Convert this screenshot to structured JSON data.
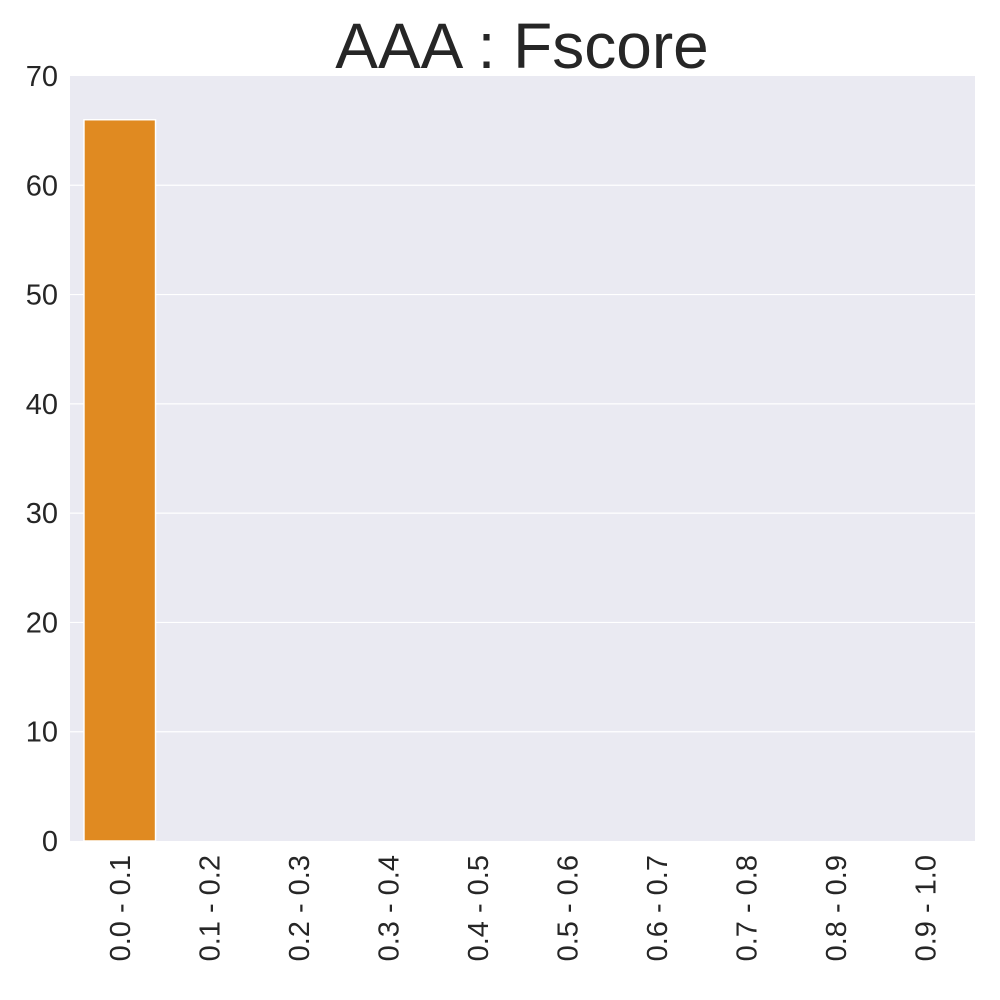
{
  "chart_data": {
    "type": "bar",
    "title": "AAA : Fscore",
    "xlabel": "",
    "ylabel": "",
    "categories": [
      "0.0 - 0.1",
      "0.1 - 0.2",
      "0.2 - 0.3",
      "0.3 - 0.4",
      "0.4 - 0.5",
      "0.5 - 0.6",
      "0.6 - 0.7",
      "0.7 - 0.8",
      "0.8 - 0.9",
      "0.9 - 1.0"
    ],
    "values": [
      66,
      0,
      0,
      0,
      0,
      0,
      0,
      0,
      0,
      0
    ],
    "ylim": [
      0,
      70
    ],
    "yticks": [
      0,
      10,
      20,
      30,
      40,
      50,
      60,
      70
    ],
    "grid": true,
    "legend": "none",
    "colors": {
      "bar": "#e08a21",
      "background": "#eaeaf2",
      "grid": "#ffffff",
      "text": "#262626"
    }
  }
}
